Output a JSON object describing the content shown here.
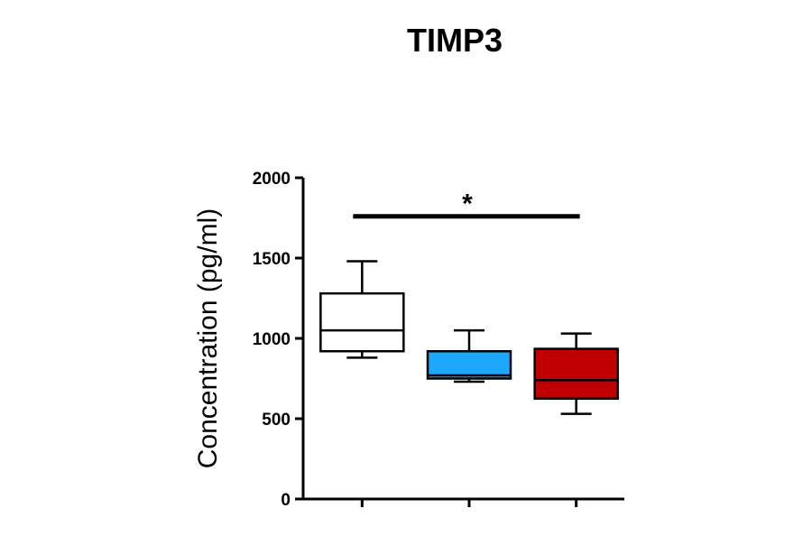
{
  "chart_data": {
    "type": "box",
    "title": "TIMP3",
    "ylabel": "Concentration (pg/ml)",
    "xlabel": "",
    "ylim": [
      0,
      2000
    ],
    "yticks": [
      0,
      500,
      1000,
      1500,
      2000
    ],
    "grid": false,
    "groups": [
      {
        "min": 880,
        "q1": 920,
        "median": 1050,
        "q3": 1280,
        "max": 1480,
        "color": "#ffffff"
      },
      {
        "min": 730,
        "q1": 750,
        "median": 770,
        "q3": 920,
        "max": 1050,
        "color": "#1ea7ff"
      },
      {
        "min": 530,
        "q1": 625,
        "median": 740,
        "q3": 935,
        "max": 1030,
        "color": "#c00000"
      }
    ],
    "significance": {
      "from_group": 0,
      "to_group": 2,
      "y": 1760,
      "label": "*"
    }
  }
}
